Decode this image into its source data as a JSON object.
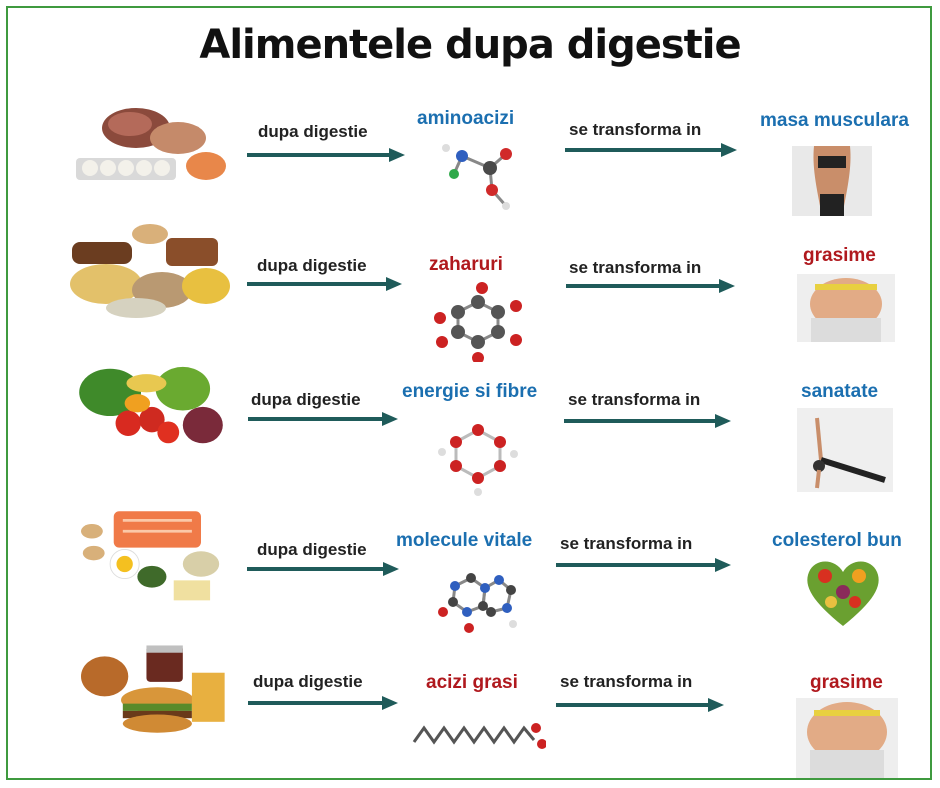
{
  "title": "Alimentele dupa digestie",
  "colors": {
    "blue": "#1b6fb0",
    "red": "#b0191e",
    "arrow": "#1f5b5a",
    "frame": "#3f9a3f"
  },
  "rows": [
    {
      "food": "meat-eggs-fish-icon",
      "dupa": "dupa digestie",
      "product": "aminoacizi",
      "product_color": "blue",
      "transforma": "se transforma in",
      "result": "masa musculara",
      "result_color": "blue",
      "result_icon": "muscular-woman-icon"
    },
    {
      "food": "bread-pasta-grains-icon",
      "dupa": "dupa digestie",
      "product": "zaharuri",
      "product_color": "red",
      "transforma": "se transforma in",
      "result": "grasime",
      "result_color": "red",
      "result_icon": "belly-fat-icon"
    },
    {
      "food": "vegetables-icon",
      "dupa": "dupa digestie",
      "product": "energie si fibre",
      "product_color": "blue",
      "transforma": "se transforma in",
      "result": "sanatate",
      "result_color": "blue",
      "result_icon": "yoga-pose-icon"
    },
    {
      "food": "nuts-salmon-avocado-icon",
      "dupa": "dupa digestie",
      "product": "molecule vitale",
      "product_color": "blue",
      "transforma": "se transforma in",
      "result": "colesterol bun",
      "result_color": "blue",
      "result_icon": "heart-vegetables-icon"
    },
    {
      "food": "fastfood-icon",
      "dupa": "dupa digestie",
      "product": "acizi grasi",
      "product_color": "red",
      "transforma": "se transforma in",
      "result": "grasime",
      "result_color": "red",
      "result_icon": "belly-fat-icon"
    }
  ]
}
